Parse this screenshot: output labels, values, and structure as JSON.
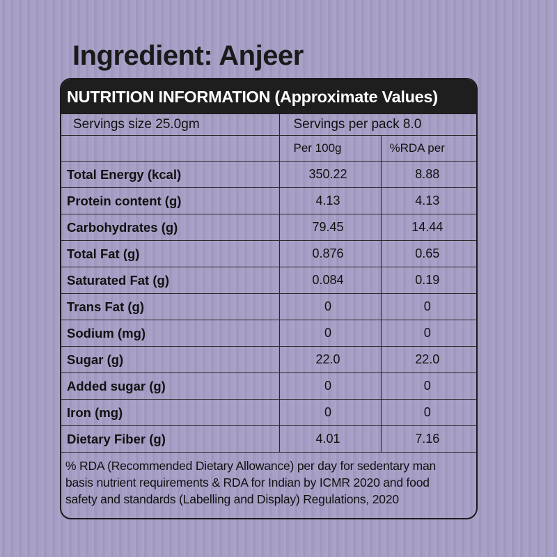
{
  "title": "Ingredient: Anjeer",
  "header": "NUTRITION INFORMATION (Approximate Values)",
  "serving": {
    "size": "Servings size 25.0gm",
    "per_pack": "Servings per pack 8.0"
  },
  "columns": {
    "per100": "Per 100g",
    "rda": "%RDA per"
  },
  "nutrients": [
    {
      "name": "Total Energy (kcal)",
      "per100": "350.22",
      "rda": "8.88"
    },
    {
      "name": "Protein content (g)",
      "per100": "4.13",
      "rda": "4.13"
    },
    {
      "name": "Carbohydrates (g)",
      "per100": "79.45",
      "rda": "14.44"
    },
    {
      "name": "Total Fat (g)",
      "per100": "0.876",
      "rda": "0.65"
    },
    {
      "name": "Saturated Fat (g)",
      "per100": "0.084",
      "rda": "0.19"
    },
    {
      "name": "Trans Fat (g)",
      "per100": "0",
      "rda": "0"
    },
    {
      "name": "Sodium (mg)",
      "per100": "0",
      "rda": "0"
    },
    {
      "name": "Sugar (g)",
      "per100": "22.0",
      "rda": "22.0"
    },
    {
      "name": "Added sugar (g)",
      "per100": "0",
      "rda": "0"
    },
    {
      "name": "Iron (mg)",
      "per100": "0",
      "rda": "0"
    },
    {
      "name": "Dietary Fiber (g)",
      "per100": "4.01",
      "rda": "7.16"
    }
  ],
  "footnote": [
    "% RDA (Recommended Dietary Allowance) per day for sedentary man",
    "basis nutrient requirements & RDA for Indian by ICMR 2020 and food",
    "safety and standards (Labelling and Display) Regulations, 2020"
  ],
  "colors": {
    "background": "#a59dc4",
    "header_bg": "#1e1e1e",
    "header_text": "#ffffff",
    "text": "#111111"
  }
}
